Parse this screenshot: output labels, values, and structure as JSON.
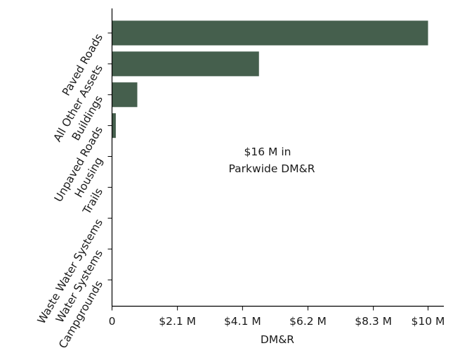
{
  "chart_data": {
    "type": "bar",
    "orientation": "horizontal",
    "categories": [
      "Paved Roads",
      "All Other Assets",
      "Buildings",
      "Unpaved Roads",
      "Housing",
      "Trails",
      "Waste Water Systems",
      "Water Systems",
      "Campgrounds"
    ],
    "values": [
      10.0,
      4.65,
      0.8,
      0.12,
      0,
      0,
      0,
      0,
      0
    ],
    "xlim": [
      0,
      10.5
    ],
    "xticks": [
      0,
      2.07,
      4.13,
      6.2,
      8.27,
      10.0
    ],
    "xtick_labels": [
      "0",
      "$2.1 M",
      "$4.1 M",
      "$6.2 M",
      "$8.3 M",
      "$10 M"
    ],
    "xlabel": "DM&R",
    "ylabel": "",
    "annotation_line1": "$16 M in",
    "annotation_line2": "Parkwide DM&R",
    "bar_color": "#455f4d",
    "grid": false,
    "legend": "none"
  }
}
